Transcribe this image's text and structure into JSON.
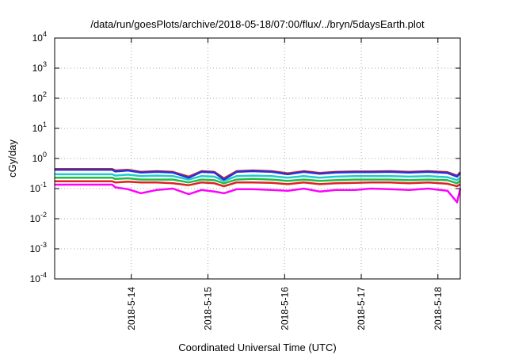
{
  "chart_data": {
    "type": "line",
    "title": "/data/run/goesPlots/archive/2018-05-18/07:00/flux/../bryn/5daysEarth.plot",
    "xlabel": "Coordinated Universal Time (UTC)",
    "ylabel": "cGy/day",
    "yscale": "log",
    "ylim": [
      0.0001,
      10000
    ],
    "xlim": [
      "2018-05-13T00:00",
      "2018-05-18T07:00"
    ],
    "grid": true,
    "legend": "none",
    "y_ticks": [
      {
        "base": "10",
        "exp": "-4",
        "value": 0.0001
      },
      {
        "base": "10",
        "exp": "-3",
        "value": 0.001
      },
      {
        "base": "10",
        "exp": "-2",
        "value": 0.01
      },
      {
        "base": "10",
        "exp": "-1",
        "value": 0.1
      },
      {
        "base": "10",
        "exp": "0",
        "value": 1
      },
      {
        "base": "10",
        "exp": "1",
        "value": 10
      },
      {
        "base": "10",
        "exp": "2",
        "value": 100
      },
      {
        "base": "10",
        "exp": "3",
        "value": 1000
      },
      {
        "base": "10",
        "exp": "4",
        "value": 10000
      }
    ],
    "x_ticks": [
      {
        "label": "2018-5-14",
        "value": "2018-05-14T00:00"
      },
      {
        "label": "2018-5-15",
        "value": "2018-05-15T00:00"
      },
      {
        "label": "2018-5-16",
        "value": "2018-05-16T00:00"
      },
      {
        "label": "2018-5-17",
        "value": "2018-05-17T00:00"
      },
      {
        "label": "2018-5-18",
        "value": "2018-05-18T00:00"
      }
    ],
    "series": [
      {
        "color": "#ff00ff",
        "x": [
          "2018-05-13T00:00",
          "2018-05-13T18:00",
          "2018-05-13T19:00",
          "2018-05-13T23:00",
          "2018-05-14T03:00",
          "2018-05-14T08:00",
          "2018-05-14T13:00",
          "2018-05-14T18:00",
          "2018-05-14T22:00",
          "2018-05-15T02:00",
          "2018-05-15T05:00",
          "2018-05-15T09:00",
          "2018-05-15T14:00",
          "2018-05-15T20:00",
          "2018-05-16T01:00",
          "2018-05-16T06:00",
          "2018-05-16T11:00",
          "2018-05-16T16:00",
          "2018-05-16T22:00",
          "2018-05-17T03:00",
          "2018-05-17T09:00",
          "2018-05-17T15:00",
          "2018-05-17T21:00",
          "2018-05-18T03:00",
          "2018-05-18T06:00",
          "2018-05-18T07:00"
        ],
        "y": [
          0.135,
          0.135,
          0.11,
          0.095,
          0.07,
          0.09,
          0.1,
          0.065,
          0.09,
          0.08,
          0.07,
          0.095,
          0.095,
          0.09,
          0.085,
          0.1,
          0.08,
          0.09,
          0.09,
          0.1,
          0.095,
          0.09,
          0.1,
          0.085,
          0.035,
          0.1
        ]
      },
      {
        "color": "#dd2222",
        "x": [
          "2018-05-13T00:00",
          "2018-05-13T18:00",
          "2018-05-13T19:00",
          "2018-05-13T23:00",
          "2018-05-14T03:00",
          "2018-05-14T08:00",
          "2018-05-14T13:00",
          "2018-05-14T18:00",
          "2018-05-14T22:00",
          "2018-05-15T02:00",
          "2018-05-15T05:00",
          "2018-05-15T09:00",
          "2018-05-15T14:00",
          "2018-05-15T20:00",
          "2018-05-16T01:00",
          "2018-05-16T06:00",
          "2018-05-16T11:00",
          "2018-05-16T16:00",
          "2018-05-16T22:00",
          "2018-05-17T03:00",
          "2018-05-17T09:00",
          "2018-05-17T15:00",
          "2018-05-17T21:00",
          "2018-05-18T03:00",
          "2018-05-18T06:00",
          "2018-05-18T07:00"
        ],
        "y": [
          0.175,
          0.175,
          0.16,
          0.17,
          0.16,
          0.16,
          0.15,
          0.13,
          0.16,
          0.15,
          0.12,
          0.16,
          0.16,
          0.155,
          0.14,
          0.16,
          0.14,
          0.15,
          0.155,
          0.16,
          0.16,
          0.15,
          0.16,
          0.145,
          0.12,
          0.14
        ]
      },
      {
        "color": "#22bb44",
        "x": [
          "2018-05-13T00:00",
          "2018-05-13T18:00",
          "2018-05-13T19:00",
          "2018-05-13T23:00",
          "2018-05-14T03:00",
          "2018-05-14T08:00",
          "2018-05-14T13:00",
          "2018-05-14T18:00",
          "2018-05-14T22:00",
          "2018-05-15T02:00",
          "2018-05-15T05:00",
          "2018-05-15T09:00",
          "2018-05-15T14:00",
          "2018-05-15T20:00",
          "2018-05-16T01:00",
          "2018-05-16T06:00",
          "2018-05-16T11:00",
          "2018-05-16T16:00",
          "2018-05-16T22:00",
          "2018-05-17T03:00",
          "2018-05-17T09:00",
          "2018-05-17T15:00",
          "2018-05-17T21:00",
          "2018-05-18T03:00",
          "2018-05-18T06:00",
          "2018-05-18T07:00"
        ],
        "y": [
          0.23,
          0.23,
          0.21,
          0.22,
          0.2,
          0.2,
          0.2,
          0.16,
          0.2,
          0.19,
          0.15,
          0.2,
          0.21,
          0.2,
          0.18,
          0.2,
          0.18,
          0.19,
          0.2,
          0.2,
          0.2,
          0.19,
          0.2,
          0.19,
          0.15,
          0.18
        ]
      },
      {
        "color": "#22cccc",
        "x": [
          "2018-05-13T00:00",
          "2018-05-13T18:00",
          "2018-05-13T19:00",
          "2018-05-13T23:00",
          "2018-05-14T03:00",
          "2018-05-14T08:00",
          "2018-05-14T13:00",
          "2018-05-14T18:00",
          "2018-05-14T22:00",
          "2018-05-15T02:00",
          "2018-05-15T05:00",
          "2018-05-15T09:00",
          "2018-05-15T14:00",
          "2018-05-15T20:00",
          "2018-05-16T01:00",
          "2018-05-16T06:00",
          "2018-05-16T11:00",
          "2018-05-16T16:00",
          "2018-05-16T22:00",
          "2018-05-17T03:00",
          "2018-05-17T09:00",
          "2018-05-17T15:00",
          "2018-05-17T21:00",
          "2018-05-18T03:00",
          "2018-05-18T06:00",
          "2018-05-18T07:00"
        ],
        "y": [
          0.3,
          0.3,
          0.27,
          0.29,
          0.26,
          0.27,
          0.26,
          0.2,
          0.26,
          0.25,
          0.18,
          0.26,
          0.27,
          0.26,
          0.23,
          0.26,
          0.23,
          0.25,
          0.26,
          0.26,
          0.26,
          0.25,
          0.26,
          0.24,
          0.19,
          0.23
        ]
      },
      {
        "color": "#dd2222",
        "x": [
          "2018-05-13T00:00",
          "2018-05-13T18:00",
          "2018-05-13T19:00",
          "2018-05-13T23:00",
          "2018-05-14T03:00",
          "2018-05-14T08:00",
          "2018-05-14T13:00",
          "2018-05-14T18:00",
          "2018-05-14T22:00",
          "2018-05-15T02:00",
          "2018-05-15T05:00",
          "2018-05-15T09:00",
          "2018-05-15T14:00",
          "2018-05-15T20:00",
          "2018-05-16T01:00",
          "2018-05-16T06:00",
          "2018-05-16T11:00",
          "2018-05-16T16:00",
          "2018-05-16T22:00",
          "2018-05-17T03:00",
          "2018-05-17T09:00",
          "2018-05-17T15:00",
          "2018-05-17T21:00",
          "2018-05-18T03:00",
          "2018-05-18T06:00",
          "2018-05-18T07:00"
        ],
        "y": [
          0.45,
          0.45,
          0.4,
          0.42,
          0.36,
          0.38,
          0.36,
          0.25,
          0.38,
          0.36,
          0.22,
          0.38,
          0.4,
          0.38,
          0.32,
          0.38,
          0.33,
          0.36,
          0.37,
          0.37,
          0.38,
          0.36,
          0.38,
          0.35,
          0.27,
          0.35
        ]
      },
      {
        "color": "#2233dd",
        "x": [
          "2018-05-13T00:00",
          "2018-05-13T18:00",
          "2018-05-13T19:00",
          "2018-05-13T23:00",
          "2018-05-14T03:00",
          "2018-05-14T08:00",
          "2018-05-14T13:00",
          "2018-05-14T18:00",
          "2018-05-14T22:00",
          "2018-05-15T02:00",
          "2018-05-15T05:00",
          "2018-05-15T09:00",
          "2018-05-15T14:00",
          "2018-05-15T20:00",
          "2018-05-16T01:00",
          "2018-05-16T06:00",
          "2018-05-16T11:00",
          "2018-05-16T16:00",
          "2018-05-16T22:00",
          "2018-05-17T03:00",
          "2018-05-17T09:00",
          "2018-05-17T15:00",
          "2018-05-17T21:00",
          "2018-05-18T03:00",
          "2018-05-18T06:00",
          "2018-05-18T07:00"
        ],
        "y": [
          0.42,
          0.42,
          0.37,
          0.4,
          0.34,
          0.36,
          0.34,
          0.23,
          0.36,
          0.34,
          0.2,
          0.36,
          0.38,
          0.36,
          0.3,
          0.36,
          0.31,
          0.34,
          0.35,
          0.35,
          0.36,
          0.34,
          0.36,
          0.33,
          0.25,
          0.33
        ]
      }
    ]
  }
}
